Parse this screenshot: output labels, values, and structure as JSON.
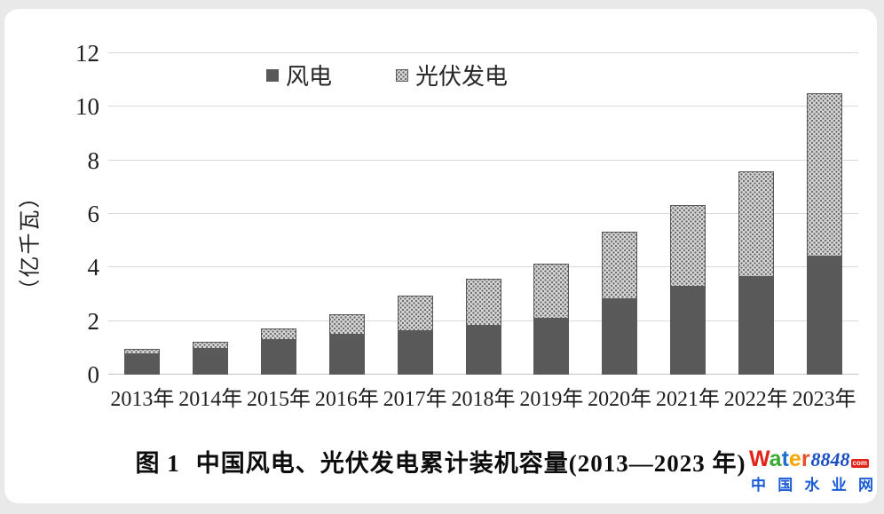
{
  "page": {
    "outer_background": "#e9e9e9",
    "card_background": "#ffffff"
  },
  "legend": {
    "items": [
      {
        "label": "风电"
      },
      {
        "label": "光伏发电"
      }
    ]
  },
  "chart_data": {
    "type": "bar",
    "stacked": true,
    "title": "图 1  中国风电、光伏发电累计装机容量(2013—2023 年)",
    "ylabel": "（亿千瓦）",
    "xlabel": "",
    "ylim": [
      0,
      12
    ],
    "yticks": [
      0,
      2,
      4,
      6,
      8,
      10,
      12
    ],
    "grid": true,
    "legend_position": "top-center",
    "categories": [
      "2013年",
      "2014年",
      "2015年",
      "2016年",
      "2017年",
      "2018年",
      "2019年",
      "2020年",
      "2021年",
      "2022年",
      "2023年"
    ],
    "series": [
      {
        "name": "风电",
        "style": "solid",
        "color": "#595959",
        "values": [
          0.77,
          0.96,
          1.29,
          1.49,
          1.64,
          1.84,
          2.1,
          2.81,
          3.28,
          3.65,
          4.41
        ]
      },
      {
        "name": "光伏发电",
        "style": "dot-pattern",
        "color": "#dadada",
        "dot_color": "#6b6b6b",
        "border_color": "#5a5a5a",
        "values": [
          0.19,
          0.28,
          0.43,
          0.77,
          1.3,
          1.74,
          2.04,
          2.53,
          3.06,
          3.93,
          6.09
        ]
      }
    ],
    "colors": {
      "gridline": "#d9d9d9",
      "axis_line": "#c4c4c4",
      "tick_text": "#1f1f1f"
    }
  },
  "caption": {
    "figure_label": "图 1",
    "text": "中国风电、光伏发电累计装机容量(2013—2023 年)"
  },
  "logo": {
    "word_letters": [
      {
        "ch": "W",
        "color": "#e2231a"
      },
      {
        "ch": "a",
        "color": "#3aaa35"
      },
      {
        "ch": "t",
        "color": "#1e6fd0"
      },
      {
        "ch": "e",
        "color": "#f7a600"
      },
      {
        "ch": "r",
        "color": "#e8502a"
      }
    ],
    "number": "8848",
    "number_color": "#1a4fc4",
    "tld": "com",
    "tld_bg": "#e2231a",
    "subtitle": "中国水业网",
    "subtitle_color": "#1a5bd7"
  }
}
